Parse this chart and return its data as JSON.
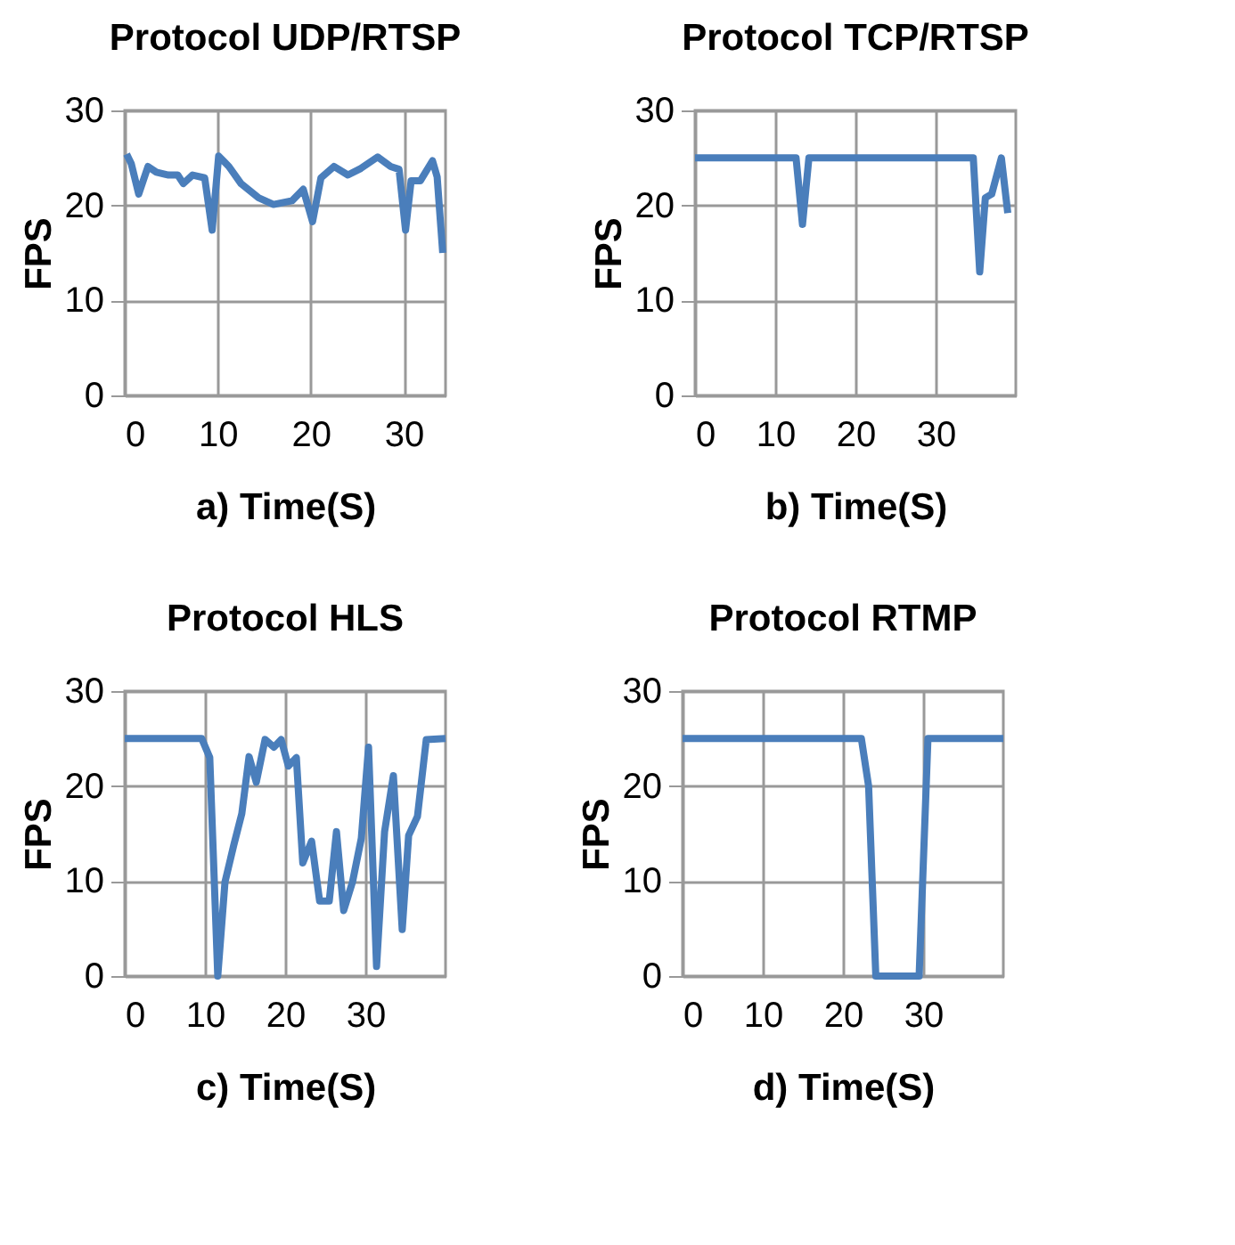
{
  "chart_data": [
    {
      "type": "line",
      "title": "Protocol UDP/RTSP",
      "xlabel": "a) Time(S)",
      "ylabel": "FPS",
      "xlim": [
        0,
        34.5
      ],
      "xticks": [
        0,
        10,
        20,
        30
      ],
      "ylim": [
        0,
        30
      ],
      "yticks": [
        0,
        10,
        20,
        30
      ],
      "grid": true,
      "x": [
        0.2,
        0.7,
        1.5,
        2.5,
        3.4,
        4.7,
        5.7,
        6.3,
        7.3,
        8.6,
        9.4,
        10.1,
        11.2,
        12.5,
        14.4,
        16,
        18,
        19.2,
        20.2,
        21.1,
        22.5,
        24,
        25.4,
        27.2,
        28.6,
        29.5,
        30.2,
        30.8,
        31.8,
        33.1,
        33.6,
        34.2
      ],
      "series": [
        {
          "color": "#4a7ebb",
          "values": [
            25.4,
            24.4,
            21.2,
            24.1,
            23.5,
            23.2,
            23.2,
            22.3,
            23.2,
            22.9,
            17.4,
            25.2,
            24.1,
            22.3,
            20.8,
            20.1,
            20.5,
            21.7,
            18.3,
            22.9,
            24.1,
            23.2,
            23.9,
            25.1,
            24.1,
            23.8,
            17.4,
            22.6,
            22.6,
            24.7,
            23,
            15
          ]
        }
      ]
    },
    {
      "type": "line",
      "title": "Protocol TCP/RTSP",
      "xlabel": "b) Time(S)",
      "ylabel": "FPS",
      "xlim": [
        0,
        40
      ],
      "xticks": [
        0,
        10,
        20,
        30
      ],
      "ylim": [
        0,
        30
      ],
      "yticks": [
        0,
        10,
        20,
        30
      ],
      "grid": true,
      "x": [
        0,
        12.6,
        13.4,
        14.2,
        34.7,
        35.5,
        36.2,
        37,
        38.2,
        39
      ],
      "series": [
        {
          "color": "#4a7ebb",
          "values": [
            25,
            25,
            18,
            25,
            25,
            13,
            20.8,
            21.2,
            25,
            19.2
          ]
        }
      ]
    },
    {
      "type": "line",
      "title": "Protocol HLS",
      "xlabel": "c) Time(S)",
      "ylabel": "FPS",
      "xlim": [
        0,
        40
      ],
      "xticks": [
        0,
        10,
        20,
        30
      ],
      "ylim": [
        0,
        30
      ],
      "yticks": [
        0,
        10,
        20,
        30
      ],
      "grid": true,
      "x": [
        0,
        9.6,
        10.6,
        11.6,
        12.5,
        13.6,
        14.6,
        15.5,
        16.4,
        17.5,
        18.6,
        19.5,
        20.4,
        21.4,
        22.2,
        23.3,
        24.3,
        25.5,
        26.4,
        27.3,
        28.4,
        29.5,
        30.4,
        31.4,
        32.4,
        33.5,
        34.6,
        35.4,
        36.5,
        37.6,
        40
      ],
      "series": [
        {
          "color": "#4a7ebb",
          "values": [
            25,
            25,
            23,
            0,
            9.9,
            13.8,
            17.1,
            23.1,
            20.4,
            24.9,
            24.1,
            24.9,
            22.1,
            23,
            11.9,
            14.2,
            7.9,
            7.9,
            15.2,
            6.9,
            9.9,
            14.5,
            24.1,
            1,
            15.2,
            21.1,
            4.9,
            14.8,
            16.8,
            24.9,
            25
          ]
        }
      ]
    },
    {
      "type": "line",
      "title": "Protocol RTMP",
      "xlabel": "d) Time(S)",
      "ylabel": "FPS",
      "xlim": [
        0,
        40
      ],
      "xticks": [
        0,
        10,
        20,
        30
      ],
      "ylim": [
        0,
        30
      ],
      "yticks": [
        0,
        10,
        20,
        30
      ],
      "grid": true,
      "x": [
        0,
        22.3,
        23.2,
        24.1,
        29.5,
        30.6,
        40
      ],
      "series": [
        {
          "color": "#4a7ebb",
          "values": [
            25,
            25,
            20,
            0,
            0,
            25,
            25
          ]
        }
      ]
    }
  ]
}
